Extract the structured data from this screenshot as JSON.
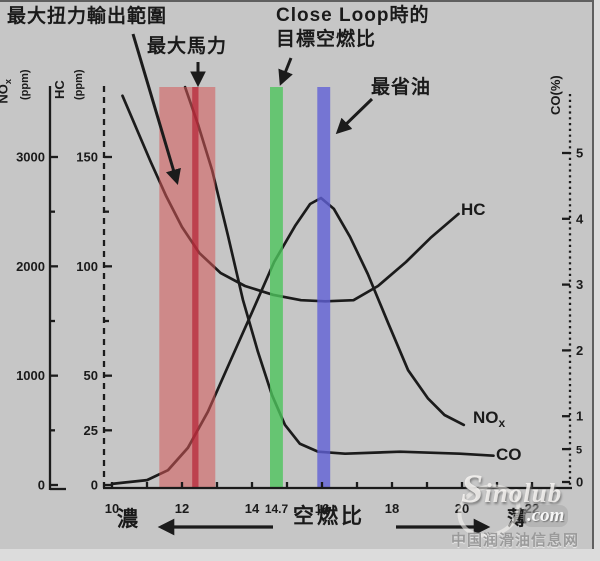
{
  "annotations": {
    "max_torque_range": "最大扭力輸出範圍",
    "max_power": "最大馬力",
    "close_loop_target": "Close Loop時的\n目標空燃比",
    "best_economy": "最省油",
    "rich": "濃",
    "lean": "薄"
  },
  "watermark": {
    "brand": "Sinolub",
    "domain": ".com",
    "site_name": "中国润滑油信息网"
  },
  "chart_data": {
    "type": "line",
    "x_axis": {
      "title": "空燃比",
      "range": [
        10,
        22.9
      ],
      "labeled_ticks": [
        {
          "v": 10,
          "label": "10"
        },
        {
          "v": 12,
          "label": "12"
        },
        {
          "v": 14,
          "label": "14"
        },
        {
          "v": 14.7,
          "label": "14.7",
          "small": true
        },
        {
          "v": 16,
          "label": "16"
        },
        {
          "v": 18,
          "label": "18"
        },
        {
          "v": 20,
          "label": "20"
        },
        {
          "v": 22,
          "label": "22"
        }
      ]
    },
    "y_axes": [
      {
        "id": "nox",
        "label_main": "NO",
        "label_sub": "x",
        "unit": "(ppm)",
        "range": [
          0,
          3400
        ],
        "ticks": [
          {
            "v": 3000,
            "label": "3000"
          },
          {
            "v": 2000,
            "label": "2000"
          },
          {
            "v": 1000,
            "label": "1000"
          },
          {
            "v": 0,
            "label": "0"
          }
        ],
        "minor_ticks": [
          500,
          1500,
          2500
        ],
        "style": "solid"
      },
      {
        "id": "hc",
        "label_main": "HC",
        "label_sub": "",
        "unit": "(ppm)",
        "range": [
          0,
          170
        ],
        "ticks": [
          {
            "v": 150,
            "label": "150"
          },
          {
            "v": 100,
            "label": "100"
          },
          {
            "v": 50,
            "label": "50"
          },
          {
            "v": 25,
            "label": "25"
          },
          {
            "v": 0,
            "label": "0"
          }
        ],
        "minor_ticks": [
          75,
          125
        ],
        "style": "dashed"
      },
      {
        "id": "co",
        "label_main": "CO(%)",
        "label_sub": "",
        "unit": "",
        "range": [
          0,
          6.1
        ],
        "ticks": [
          {
            "v": 5,
            "label": "5"
          },
          {
            "v": 4,
            "label": "4"
          },
          {
            "v": 3,
            "label": "3"
          },
          {
            "v": 2,
            "label": "2"
          },
          {
            "v": 1,
            "label": "1"
          },
          {
            "v": 0.5,
            "label": "5",
            "small": true
          },
          {
            "v": 0,
            "label": "0"
          }
        ],
        "minor_ticks": [],
        "style": "dotted"
      }
    ],
    "bands": [
      {
        "name": "max-torque-band",
        "label": "最大扭力輸出範圍",
        "kind": "range",
        "x_from": 11.35,
        "x_to": 12.95,
        "color": "rgba(214,88,88,0.55)"
      },
      {
        "name": "max-power-line",
        "label": "最大馬力",
        "kind": "line",
        "x": 12.38,
        "width_afr": 0.18,
        "color": "rgba(182,34,52,0.70)"
      },
      {
        "name": "close-loop-line",
        "label": "Close Loop時的目標空燃比",
        "kind": "line",
        "x": 14.7,
        "width_afr": 0.37,
        "color": "rgba(78,196,92,0.80)"
      },
      {
        "name": "economy-line",
        "label": "最省油",
        "kind": "line",
        "x": 16.05,
        "width_afr": 0.37,
        "color": "rgba(96,96,214,0.80)"
      }
    ],
    "series": [
      {
        "name": "NOx",
        "axis": "nox",
        "label_main": "NO",
        "label_sub": "x",
        "points": [
          [
            10.0,
            10
          ],
          [
            11.0,
            45
          ],
          [
            11.6,
            135
          ],
          [
            12.17,
            340
          ],
          [
            12.74,
            670
          ],
          [
            13.37,
            1125
          ],
          [
            14.0,
            1580
          ],
          [
            14.63,
            2040
          ],
          [
            15.23,
            2370
          ],
          [
            15.66,
            2570
          ],
          [
            15.97,
            2625
          ],
          [
            16.34,
            2525
          ],
          [
            16.8,
            2270
          ],
          [
            17.31,
            1930
          ],
          [
            17.89,
            1480
          ],
          [
            18.46,
            1050
          ],
          [
            19.03,
            790
          ],
          [
            19.5,
            640
          ],
          [
            20.05,
            550
          ]
        ]
      },
      {
        "name": "HC",
        "axis": "hc",
        "label_main": "HC",
        "label_sub": "",
        "points": [
          [
            10.3,
            178
          ],
          [
            10.7,
            163
          ],
          [
            11.1,
            148
          ],
          [
            11.55,
            132
          ],
          [
            12.0,
            118
          ],
          [
            12.5,
            106
          ],
          [
            13.1,
            97
          ],
          [
            13.8,
            91
          ],
          [
            14.6,
            87
          ],
          [
            15.4,
            84.5
          ],
          [
            16.1,
            84
          ],
          [
            16.9,
            84.5
          ],
          [
            17.6,
            91
          ],
          [
            18.4,
            102
          ],
          [
            19.1,
            113
          ],
          [
            19.9,
            124
          ]
        ]
      },
      {
        "name": "CO",
        "axis": "co",
        "label_main": "CO",
        "label_sub": "",
        "points": [
          [
            12.09,
            6.0
          ],
          [
            12.46,
            5.43
          ],
          [
            12.86,
            4.74
          ],
          [
            13.31,
            3.75
          ],
          [
            13.74,
            2.77
          ],
          [
            14.17,
            1.98
          ],
          [
            14.57,
            1.32
          ],
          [
            14.94,
            0.87
          ],
          [
            15.37,
            0.58
          ],
          [
            15.89,
            0.46
          ],
          [
            16.66,
            0.43
          ],
          [
            18.23,
            0.46
          ],
          [
            19.94,
            0.43
          ],
          [
            20.9,
            0.4
          ]
        ]
      }
    ]
  }
}
